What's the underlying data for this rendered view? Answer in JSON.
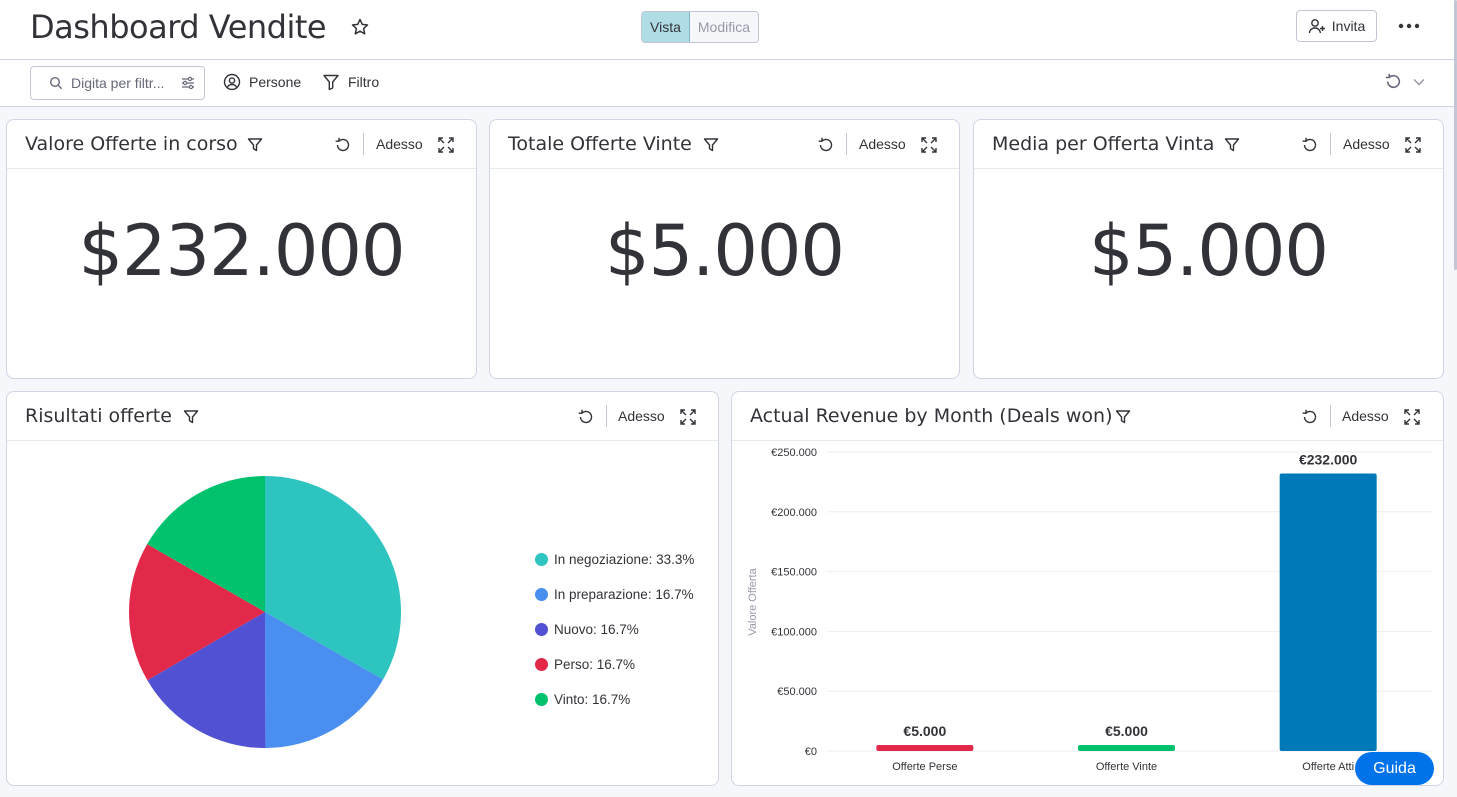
{
  "header": {
    "title": "Dashboard Vendite",
    "view_toggle": [
      "Vista",
      "Modifica"
    ],
    "invite_label": "Invita"
  },
  "filterbar": {
    "search_placeholder": "Digita per filtr...",
    "people_label": "Persone",
    "filter_label": "Filtro"
  },
  "widgets": [
    {
      "title": "Valore Offerte in corso",
      "now": "Adesso",
      "value": "$232.000"
    },
    {
      "title": "Totale Offerte Vinte",
      "now": "Adesso",
      "value": "$5.000"
    },
    {
      "title": "Media per Offerta Vinta",
      "now": "Adesso",
      "value": "$5.000"
    }
  ],
  "pie_widget": {
    "title": "Risultati offerte",
    "now": "Adesso",
    "legend": [
      {
        "label": "In negoziazione: 33.3%",
        "color": "#2ec4bf"
      },
      {
        "label": "In preparazione: 16.7%",
        "color": "#4a8ff0"
      },
      {
        "label": "Nuovo: 16.7%",
        "color": "#5151d3"
      },
      {
        "label": "Perso: 16.7%",
        "color": "#e2294a"
      },
      {
        "label": "Vinto: 16.7%",
        "color": "#00c16e"
      }
    ]
  },
  "bar_widget": {
    "title": "Actual Revenue by Month (Deals won)",
    "now": "Adesso"
  },
  "chart_data": [
    {
      "type": "pie",
      "title": "Risultati offerte",
      "slices": [
        {
          "label": "In negoziazione",
          "value": 33.3,
          "color": "#2ec4bf"
        },
        {
          "label": "In preparazione",
          "value": 16.7,
          "color": "#4a8ff0"
        },
        {
          "label": "Nuovo",
          "value": 16.7,
          "color": "#5151d3"
        },
        {
          "label": "Perso",
          "value": 16.7,
          "color": "#e2294a"
        },
        {
          "label": "Vinto",
          "value": 16.7,
          "color": "#00c16e"
        }
      ],
      "legend": "right"
    },
    {
      "type": "bar",
      "title": "Actual Revenue by Month (Deals won)",
      "categories": [
        "Offerte Perse",
        "Offerte Vinte",
        "Offerte Atti"
      ],
      "values": [
        5000,
        5000,
        232000
      ],
      "value_labels": [
        "€5.000",
        "€5.000",
        "€232.000"
      ],
      "colors": [
        "#e2294a",
        "#00c16e",
        "#0079b8"
      ],
      "ylabel": "Valore Offerta",
      "yticks": [
        "€0",
        "€50.000",
        "€100.000",
        "€150.000",
        "€200.000",
        "€250.000"
      ],
      "ylim": [
        0,
        250000
      ],
      "grid": true
    }
  ],
  "guida_label": "Guida"
}
